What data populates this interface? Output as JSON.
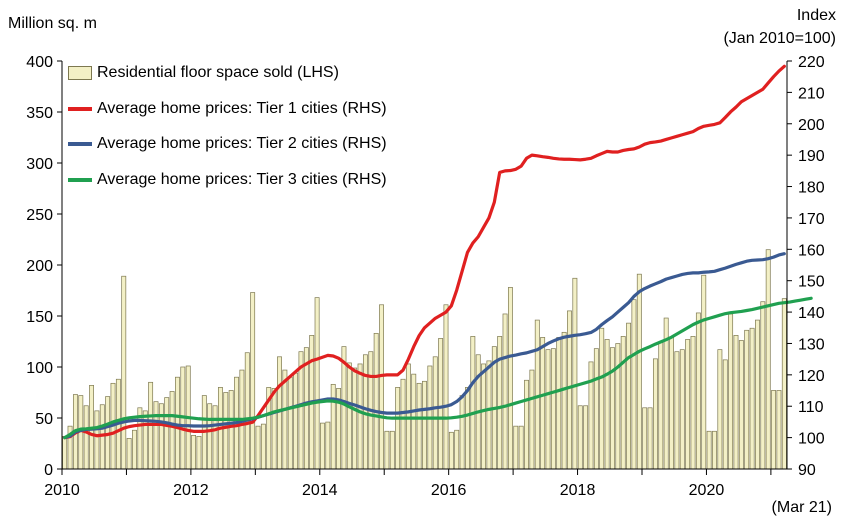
{
  "chart_data": {
    "type": "bar+line",
    "left_axis_title": "Million sq. m",
    "right_axis_title_line1": "Index",
    "right_axis_title_line2": "(Jan 2010=100)",
    "x_end_note": "(Mar 21)",
    "left_ylim": [
      0,
      400
    ],
    "right_ylim": [
      90,
      220
    ],
    "left_ticks": [
      "0",
      "50",
      "100",
      "150",
      "200",
      "250",
      "300",
      "350",
      "400"
    ],
    "right_ticks": [
      "90",
      "100",
      "110",
      "120",
      "130",
      "140",
      "150",
      "160",
      "170",
      "180",
      "190",
      "200",
      "210",
      "220"
    ],
    "x_ticks": [
      "2010",
      "2012",
      "2014",
      "2016",
      "2018",
      "2020"
    ],
    "x_range_months": [
      "Jan 2010",
      "Mar 2021"
    ],
    "grid": false,
    "legend_position": "top-left",
    "bar_series": {
      "name": "Residential floor space sold (LHS)",
      "color": "#f3f0c6",
      "edge_color": "#7d7850",
      "values": [
        32,
        42,
        73,
        72,
        62,
        82,
        57,
        63,
        71,
        84,
        88,
        189,
        30,
        38,
        60,
        57,
        85,
        66,
        64,
        70,
        76,
        90,
        100,
        101,
        33,
        32,
        72,
        64,
        62,
        80,
        75,
        77,
        90,
        97,
        114,
        173,
        42,
        44,
        80,
        79,
        110,
        97,
        90,
        94,
        115,
        119,
        131,
        168,
        45,
        46,
        83,
        79,
        120,
        104,
        99,
        103,
        112,
        115,
        133,
        161,
        37,
        37,
        80,
        88,
        103,
        93,
        84,
        86,
        101,
        110,
        128,
        161,
        36,
        38,
        72,
        80,
        130,
        112,
        103,
        106,
        120,
        130,
        152,
        178,
        42,
        42,
        87,
        97,
        146,
        129,
        117,
        118,
        129,
        134,
        155,
        187,
        62,
        62,
        105,
        118,
        138,
        127,
        119,
        123,
        130,
        143,
        166,
        191,
        60,
        60,
        108,
        124,
        148,
        129,
        115,
        117,
        127,
        130,
        153,
        190,
        37,
        37,
        117,
        107,
        152,
        131,
        126,
        136,
        138,
        146,
        164,
        215,
        77,
        77,
        167
      ]
    },
    "line_series": [
      {
        "name": "Average home prices: Tier 1 cities (RHS)",
        "color": "#e02020",
        "values": [
          100,
          100.3,
          101.5,
          102.3,
          101.8,
          101.0,
          100.6,
          100.8,
          101.0,
          101.4,
          102.2,
          103.0,
          103.5,
          103.8,
          104.0,
          104.2,
          104.2,
          104.2,
          104.2,
          103.9,
          103.6,
          103.2,
          102.7,
          102.3,
          102.0,
          102.0,
          102.0,
          102.2,
          102.5,
          103.0,
          103.3,
          103.6,
          103.8,
          104.2,
          104.5,
          104.9,
          107.0,
          109.5,
          112.0,
          114.5,
          116.5,
          118.0,
          119.5,
          121.0,
          122.5,
          123.5,
          124.5,
          125.0,
          125.6,
          126.2,
          126.0,
          125.3,
          124.0,
          122.5,
          121.3,
          120.5,
          119.8,
          119.5,
          119.5,
          119.8,
          120.0,
          120.0,
          120.0,
          121.5,
          125.0,
          129.0,
          132.5,
          135.0,
          136.5,
          138.0,
          139.0,
          140.0,
          142.0,
          147.0,
          153.0,
          159.0,
          162.0,
          164.0,
          167.0,
          170.0,
          175.0,
          184.5,
          185.0,
          185.1,
          185.5,
          186.5,
          189.0,
          190.0,
          189.8,
          189.5,
          189.3,
          189.0,
          188.8,
          188.7,
          188.7,
          188.6,
          188.5,
          188.7,
          189.0,
          189.8,
          190.5,
          191.2,
          191.0,
          191.0,
          191.5,
          191.8,
          192.0,
          192.6,
          193.5,
          194.0,
          194.2,
          194.5,
          195.0,
          195.5,
          196.0,
          196.5,
          197.0,
          197.5,
          198.5,
          199.2,
          199.5,
          199.8,
          200.3,
          202.0,
          203.8,
          205.3,
          207.0,
          208.0,
          209.0,
          210.0,
          211.0,
          213.0,
          215.0,
          216.8,
          218.3
        ]
      },
      {
        "name": "Average home prices: Tier 2 cities (RHS)",
        "color": "#3a5a92",
        "values": [
          100,
          100.5,
          101.8,
          102.3,
          102.6,
          102.7,
          102.8,
          103.0,
          103.5,
          104.0,
          104.6,
          105.0,
          105.3,
          105.5,
          105.5,
          105.4,
          105.3,
          105.2,
          105.0,
          104.7,
          104.3,
          104.0,
          103.8,
          103.8,
          103.7,
          103.7,
          103.7,
          103.8,
          104.0,
          104.2,
          104.4,
          104.6,
          104.8,
          105.2,
          105.6,
          106.0,
          106.5,
          107.0,
          107.5,
          108.0,
          108.5,
          109.0,
          109.5,
          110.0,
          110.5,
          111.0,
          111.4,
          111.7,
          112.0,
          112.3,
          112.3,
          112.0,
          111.5,
          110.9,
          110.4,
          109.8,
          109.2,
          108.7,
          108.3,
          108.0,
          107.8,
          107.8,
          107.8,
          108.0,
          108.2,
          108.5,
          108.8,
          109.0,
          109.2,
          109.5,
          109.7,
          110.0,
          110.5,
          111.5,
          113.0,
          115.0,
          117.5,
          119.5,
          121.0,
          122.5,
          124.0,
          125.0,
          125.5,
          126.0,
          126.3,
          126.7,
          127.0,
          127.5,
          128.0,
          129.0,
          130.0,
          130.8,
          131.5,
          132.0,
          132.3,
          132.6,
          132.8,
          133.1,
          133.5,
          134.5,
          136.0,
          137.3,
          138.5,
          140.0,
          141.5,
          143.0,
          145.0,
          146.5,
          147.5,
          148.3,
          149.0,
          149.7,
          150.5,
          151.0,
          151.5,
          152.0,
          152.3,
          152.5,
          152.5,
          152.7,
          152.8,
          153.0,
          153.5,
          154.0,
          154.6,
          155.2,
          155.7,
          156.2,
          156.5,
          156.6,
          156.7,
          157.0,
          157.5,
          158.2,
          158.6
        ]
      },
      {
        "name": "Average home prices: Tier 3 cities (RHS)",
        "color": "#20a050",
        "values": [
          100,
          101.0,
          102.2,
          102.7,
          102.8,
          103.0,
          103.2,
          103.7,
          104.3,
          105.0,
          105.5,
          106.0,
          106.3,
          106.5,
          106.7,
          106.8,
          106.9,
          107.0,
          107.0,
          107.0,
          107.0,
          106.8,
          106.6,
          106.4,
          106.2,
          106.0,
          105.9,
          105.8,
          105.8,
          105.8,
          105.8,
          105.8,
          105.8,
          105.8,
          106.0,
          106.2,
          106.5,
          107.0,
          107.6,
          108.2,
          108.6,
          109.0,
          109.4,
          109.8,
          110.2,
          110.6,
          111.0,
          111.3,
          111.5,
          111.7,
          111.6,
          111.3,
          110.7,
          109.8,
          109.0,
          108.2,
          107.6,
          107.2,
          106.9,
          106.6,
          106.3,
          106.2,
          106.2,
          106.2,
          106.2,
          106.2,
          106.2,
          106.2,
          106.2,
          106.2,
          106.2,
          106.2,
          106.3,
          106.5,
          106.8,
          107.2,
          107.7,
          108.2,
          108.6,
          109.0,
          109.3,
          109.6,
          110.0,
          110.5,
          111.0,
          111.5,
          112.0,
          112.5,
          113.0,
          113.5,
          114.0,
          114.5,
          115.0,
          115.5,
          116.0,
          116.5,
          117.0,
          117.5,
          118.0,
          118.7,
          119.3,
          120.2,
          121.2,
          122.5,
          124.0,
          125.5,
          126.5,
          127.5,
          128.3,
          129.0,
          129.8,
          130.5,
          131.2,
          132.0,
          133.0,
          134.0,
          135.0,
          136.0,
          136.8,
          137.5,
          138.0,
          138.5,
          139.0,
          139.5,
          139.8,
          140.0,
          140.2,
          140.5,
          140.8,
          141.2,
          141.6,
          142.0,
          142.4,
          142.8,
          143.0,
          143.2,
          143.5,
          143.8,
          144.1,
          144.4
        ]
      }
    ]
  }
}
